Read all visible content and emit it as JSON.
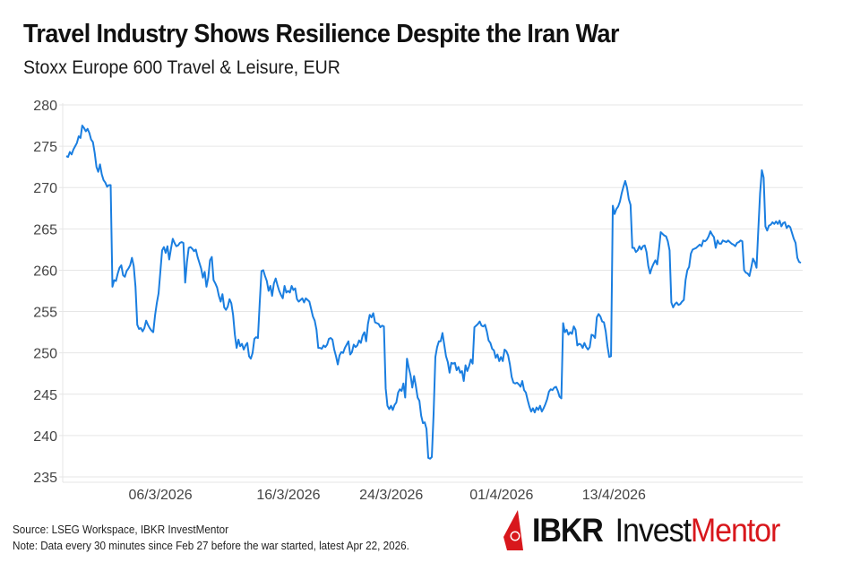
{
  "header": {
    "title": "Travel Industry Shows Resilience Despite the Iran War",
    "subtitle": "Stoxx Europe 600 Travel & Leisure, EUR"
  },
  "footer": {
    "source": "Source: LSEG Workspace, IBKR InvestMentor",
    "note": "Note: Data every 30 minutes since Feb 27 before the war started, latest Apr 22, 2026."
  },
  "logo": {
    "brand": "IBKR",
    "word1": "Invest",
    "word2": "Mentor",
    "brand_color": "#d8171c"
  },
  "colors": {
    "line": "#1a7ee0",
    "grid": "#e6e6e6",
    "tick_text": "#444444"
  },
  "chart_data": {
    "type": "line",
    "title": "Travel Industry Shows Resilience Despite the Iran War",
    "subtitle": "Stoxx Europe 600 Travel & Leisure, EUR",
    "xlabel": "",
    "ylabel": "",
    "ylim": [
      235,
      280
    ],
    "yticks": [
      235,
      240,
      245,
      250,
      255,
      260,
      265,
      270,
      275,
      280
    ],
    "xticks": [
      {
        "label": "06/3/2026",
        "pos": 0.132
      },
      {
        "label": "16/3/2026",
        "pos": 0.305
      },
      {
        "label": "24/3/2026",
        "pos": 0.444
      },
      {
        "label": "01/4/2026",
        "pos": 0.593
      },
      {
        "label": "13/4/2026",
        "pos": 0.745
      }
    ],
    "grid": true,
    "legend": "none",
    "x_range": [
      "27/2/2026",
      "22/4/2026"
    ],
    "series": [
      {
        "name": "Stoxx Europe 600 Travel & Leisure",
        "values": [
          273.8,
          273.7,
          274.3,
          274.0,
          274.6,
          275.0,
          275.4,
          276.2,
          276.0,
          277.5,
          277.2,
          276.8,
          277.1,
          276.6,
          275.8,
          275.5,
          274.2,
          272.5,
          271.9,
          272.8,
          271.6,
          270.9,
          270.6,
          270.1,
          270.3,
          270.3,
          258.0,
          258.8,
          258.7,
          259.6,
          260.3,
          260.6,
          259.4,
          259.2,
          259.9,
          260.2,
          260.6,
          261.5,
          260.5,
          258.0,
          253.4,
          252.9,
          253.0,
          252.6,
          253.0,
          253.9,
          253.4,
          253.0,
          252.7,
          252.5,
          254.5,
          256.0,
          257.2,
          259.8,
          262.4,
          262.8,
          262.1,
          262.9,
          261.3,
          262.6,
          263.8,
          263.3,
          262.9,
          263.0,
          263.3,
          263.4,
          263.3,
          258.5,
          261.0,
          262.7,
          262.8,
          262.6,
          262.3,
          262.5,
          261.6,
          260.9,
          260.2,
          259.1,
          259.8,
          258.0,
          259.1,
          261.2,
          261.6,
          258.8,
          258.4,
          257.9,
          256.9,
          256.2,
          257.1,
          255.5,
          255.2,
          255.6,
          256.5,
          256.0,
          254.6,
          252.2,
          250.6,
          251.6,
          250.8,
          251.1,
          250.4,
          250.9,
          251.2,
          249.6,
          249.3,
          250.0,
          251.7,
          251.9,
          251.8,
          256.0,
          259.9,
          260.0,
          259.3,
          258.7,
          257.5,
          258.1,
          256.9,
          258.4,
          259.0,
          258.2,
          257.5,
          257.0,
          256.6,
          258.1,
          257.3,
          257.5,
          257.3,
          258.1,
          257.6,
          257.8,
          256.5,
          256.2,
          256.4,
          256.6,
          256.1,
          256.6,
          256.4,
          256.2,
          255.3,
          254.4,
          253.9,
          252.8,
          250.6,
          250.6,
          250.5,
          250.9,
          250.7,
          251.0,
          251.7,
          251.8,
          251.6,
          250.4,
          249.6,
          248.6,
          249.7,
          250.1,
          250.0,
          250.6,
          251.0,
          251.4,
          249.8,
          250.1,
          251.0,
          250.7,
          250.9,
          251.5,
          251.2,
          252.1,
          252.5,
          251.4,
          253.5,
          254.6,
          254.3,
          254.8,
          253.7,
          253.6,
          253.5,
          253.1,
          253.3,
          253.2,
          245.7,
          243.6,
          243.2,
          243.6,
          243.1,
          243.7,
          244.0,
          245.2,
          245.6,
          245.4,
          246.3,
          244.6,
          249.3,
          248.2,
          247.3,
          245.8,
          247.2,
          246.0,
          244.6,
          244.2,
          242.4,
          241.5,
          241.6,
          240.8,
          237.3,
          237.2,
          237.4,
          242.6,
          249.5,
          250.7,
          251.4,
          251.4,
          252.4,
          251.0,
          249.6,
          248.9,
          247.6,
          248.8,
          248.7,
          248.8,
          247.9,
          248.3,
          247.6,
          247.8,
          246.6,
          248.5,
          247.8,
          248.4,
          249.2,
          248.7,
          253.1,
          253.3,
          253.5,
          253.8,
          253.3,
          253.2,
          253.4,
          252.6,
          251.5,
          251.2,
          250.5,
          250.3,
          249.4,
          249.8,
          249.0,
          249.5,
          249.0,
          250.4,
          250.2,
          249.7,
          248.6,
          247.1,
          246.4,
          246.3,
          246.4,
          246.2,
          245.9,
          246.6,
          245.5,
          245.2,
          244.3,
          243.5,
          242.9,
          243.3,
          242.8,
          243.4,
          243.1,
          243.6,
          242.9,
          243.3,
          243.8,
          244.4,
          245.3,
          245.6,
          245.5,
          245.8,
          245.9,
          245.4,
          244.7,
          244.5,
          253.6,
          252.5,
          252.8,
          252.2,
          252.5,
          252.3,
          253.2,
          252.8,
          250.9,
          251.1,
          251.0,
          250.6,
          251.2,
          250.7,
          250.4,
          250.7,
          252.2,
          252.1,
          251.8,
          254.3,
          254.7,
          254.4,
          253.8,
          253.7,
          252.6,
          250.8,
          249.5,
          249.6,
          267.8,
          266.8,
          267.4,
          267.7,
          268.3,
          269.3,
          270.1,
          270.8,
          270.0,
          268.6,
          267.9,
          262.7,
          262.7,
          262.2,
          262.4,
          262.9,
          262.5,
          262.9,
          263.0,
          262.2,
          260.5,
          259.6,
          260.3,
          260.8,
          261.2,
          260.7,
          262.5,
          264.6,
          264.4,
          264.2,
          264.1,
          263.5,
          262.4,
          256.1,
          255.5,
          255.9,
          256.1,
          255.8,
          255.9,
          256.2,
          256.4,
          258.8,
          260.0,
          260.4,
          262.0,
          262.5,
          262.6,
          262.7,
          262.9,
          263.1,
          262.9,
          263.6,
          263.5,
          263.7,
          264.1,
          264.7,
          264.3,
          264.0,
          262.7,
          263.6,
          263.2,
          263.2,
          263.6,
          263.5,
          263.4,
          263.6,
          263.4,
          263.2,
          263.1,
          262.9,
          263.3,
          263.4,
          263.6,
          263.5,
          260.0,
          259.7,
          259.6,
          259.3,
          260.3,
          261.4,
          261.0,
          260.3,
          264.9,
          269.3,
          272.1,
          271.2,
          265.3,
          264.8,
          265.4,
          265.5,
          265.8,
          265.6,
          265.9,
          265.6,
          266.0,
          265.3,
          265.7,
          265.8,
          265.1,
          265.4,
          265.2,
          264.5,
          263.8,
          263.3,
          261.5,
          261.0,
          260.9
        ]
      }
    ]
  }
}
